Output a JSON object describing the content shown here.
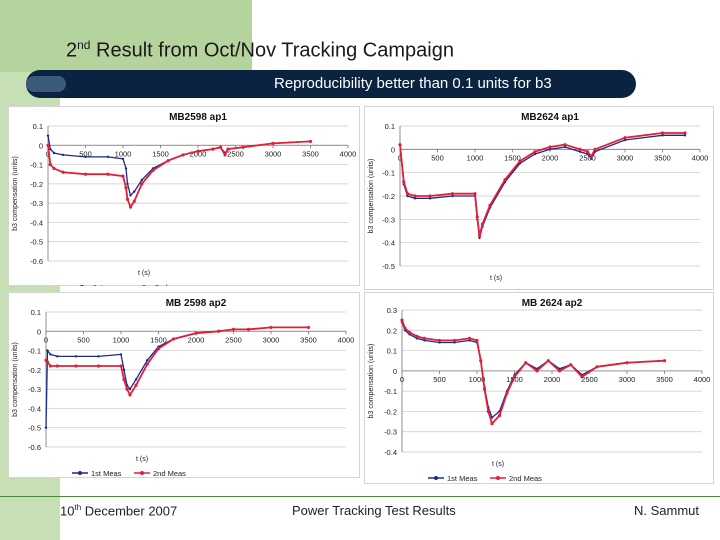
{
  "slide": {
    "title_pre": "2",
    "title_sup": "nd",
    "title_post": " Result from Oct/Nov Tracking Campaign",
    "subtitle": "Reproducibility better than 0.1 units for b3",
    "footer_left_pre": "10",
    "footer_left_sup": "th",
    "footer_left_post": " December 2007",
    "footer_center": "Power Tracking Test Results",
    "footer_right": "N. Sammut"
  },
  "colors": {
    "meas1": "#1c2a8c",
    "meas2": "#e0203a",
    "banner": "#0a2340",
    "green": "#b5d39d"
  },
  "chart_data": [
    {
      "id": "mb2598-ap1",
      "type": "line",
      "title": "MB2598 ap1",
      "xlabel": "t (s)",
      "ylabel": "b3 compensation (units)",
      "xlim": [
        0,
        4000
      ],
      "ylim": [
        -0.6,
        0.1
      ],
      "xticks": [
        0,
        500,
        1000,
        1500,
        2000,
        2500,
        3000,
        3500,
        4000
      ],
      "xtick_labels": [
        "0",
        "500",
        "1000",
        "1500",
        "2000",
        "2500",
        "3000",
        "3500",
        "4000"
      ],
      "yticks": [
        0.1,
        0,
        -0.1,
        -0.2,
        -0.3,
        -0.4,
        -0.5,
        -0.6
      ],
      "ytick_labels": [
        "0.1",
        "0",
        "-0.1",
        "-0.2",
        "-0.3",
        "-0.4",
        "-0.5",
        "-0.6"
      ],
      "legend": [
        "1st meas",
        "2nd meas"
      ],
      "series": [
        {
          "name": "1st meas",
          "x": [
            0,
            30,
            80,
            200,
            500,
            800,
            1000,
            1040,
            1060,
            1100,
            1150,
            1250,
            1400,
            1600,
            1800,
            2000,
            2200,
            2300,
            2360,
            2400,
            2600,
            3000,
            3500
          ],
          "y": [
            0.05,
            -0.02,
            -0.04,
            -0.05,
            -0.06,
            -0.06,
            -0.07,
            -0.12,
            -0.2,
            -0.26,
            -0.24,
            -0.18,
            -0.12,
            -0.08,
            -0.05,
            -0.03,
            -0.02,
            -0.01,
            -0.04,
            -0.02,
            -0.01,
            0.01,
            0.02
          ]
        },
        {
          "name": "2nd meas",
          "x": [
            0,
            30,
            80,
            200,
            500,
            800,
            1000,
            1040,
            1060,
            1100,
            1150,
            1250,
            1400,
            1600,
            1800,
            2000,
            2200,
            2300,
            2360,
            2400,
            2600,
            3000,
            3500
          ],
          "y": [
            0.0,
            -0.1,
            -0.12,
            -0.14,
            -0.15,
            -0.15,
            -0.16,
            -0.22,
            -0.28,
            -0.32,
            -0.29,
            -0.2,
            -0.13,
            -0.08,
            -0.05,
            -0.03,
            -0.02,
            -0.01,
            -0.05,
            -0.02,
            -0.01,
            0.01,
            0.02
          ]
        }
      ]
    },
    {
      "id": "mb2624-ap1",
      "type": "line",
      "title": "MB2624 ap1",
      "xlabel": "t (s)",
      "ylabel": "b3 compensation (units)",
      "xlim": [
        0,
        4000
      ],
      "ylim": [
        -0.5,
        0.1
      ],
      "xticks": [
        0,
        500,
        1000,
        1500,
        2000,
        2500,
        3000,
        3500,
        4000
      ],
      "xtick_labels": [
        "0",
        "500",
        "1000",
        "1500",
        "2000",
        "2500",
        "3000",
        "3500",
        "4000"
      ],
      "yticks": [
        0.1,
        0,
        -0.1,
        -0.2,
        -0.3,
        -0.4,
        -0.5
      ],
      "ytick_labels": [
        "0.1",
        "0",
        "-0.1",
        "-0.2",
        "-0.3",
        "-0.4",
        "-0.5"
      ],
      "legend": [
        "1st meas",
        "2nd meas"
      ],
      "series": [
        {
          "name": "1st meas",
          "x": [
            0,
            50,
            100,
            200,
            400,
            700,
            1000,
            1030,
            1060,
            1100,
            1200,
            1400,
            1600,
            1800,
            2000,
            2200,
            2400,
            2500,
            2550,
            2600,
            3000,
            3500,
            3800
          ],
          "y": [
            0.02,
            -0.15,
            -0.2,
            -0.21,
            -0.21,
            -0.2,
            -0.2,
            -0.3,
            -0.38,
            -0.33,
            -0.25,
            -0.14,
            -0.06,
            -0.02,
            0.0,
            0.01,
            -0.01,
            -0.02,
            -0.04,
            -0.01,
            0.04,
            0.06,
            0.06
          ]
        },
        {
          "name": "2nd meas",
          "x": [
            0,
            50,
            100,
            200,
            400,
            700,
            1000,
            1030,
            1060,
            1100,
            1200,
            1400,
            1600,
            1800,
            2000,
            2200,
            2400,
            2500,
            2550,
            2600,
            3000,
            3500,
            3800
          ],
          "y": [
            0.02,
            -0.14,
            -0.19,
            -0.2,
            -0.2,
            -0.19,
            -0.19,
            -0.29,
            -0.37,
            -0.32,
            -0.24,
            -0.13,
            -0.05,
            -0.01,
            0.01,
            0.02,
            0.0,
            -0.01,
            -0.03,
            0.0,
            0.05,
            0.07,
            0.07
          ]
        }
      ]
    },
    {
      "id": "mb2598-ap2",
      "type": "line",
      "title": "MB 2598 ap2",
      "xlabel": "t (s)",
      "ylabel": "b3 compensation (units)",
      "xlim": [
        0,
        4000
      ],
      "ylim": [
        -0.6,
        0.1
      ],
      "xticks": [
        0,
        500,
        1000,
        1500,
        2000,
        2500,
        3000,
        3500,
        4000
      ],
      "xtick_labels": [
        "0",
        "500",
        "1000",
        "1500",
        "2000",
        "2500",
        "3000",
        "3500",
        "4000"
      ],
      "yticks": [
        0.1,
        0,
        -0.1,
        -0.2,
        -0.3,
        -0.4,
        -0.5,
        -0.6
      ],
      "ytick_labels": [
        "0.1",
        "0",
        "-0.1",
        "-0.2",
        "-0.3",
        "-0.4",
        "-0.5",
        "-0.6"
      ],
      "legend": [
        "1st Meas",
        "2nd Meas"
      ],
      "series": [
        {
          "name": "1st Meas",
          "x": [
            0,
            20,
            60,
            150,
            400,
            700,
            1000,
            1040,
            1080,
            1120,
            1200,
            1350,
            1500,
            1700,
            2000,
            2300,
            2500,
            2700,
            3000,
            3500
          ],
          "y": [
            -0.5,
            -0.1,
            -0.12,
            -0.13,
            -0.13,
            -0.13,
            -0.12,
            -0.2,
            -0.28,
            -0.3,
            -0.25,
            -0.15,
            -0.08,
            -0.04,
            -0.01,
            0.0,
            0.01,
            0.01,
            0.02,
            0.02
          ]
        },
        {
          "name": "2nd Meas",
          "x": [
            0,
            20,
            60,
            150,
            400,
            700,
            1000,
            1040,
            1080,
            1120,
            1200,
            1350,
            1500,
            1700,
            2000,
            2300,
            2500,
            2700,
            3000,
            3500
          ],
          "y": [
            -0.15,
            -0.16,
            -0.18,
            -0.18,
            -0.18,
            -0.18,
            -0.18,
            -0.25,
            -0.3,
            -0.33,
            -0.28,
            -0.17,
            -0.09,
            -0.04,
            -0.01,
            0.0,
            0.01,
            0.01,
            0.02,
            0.02
          ]
        }
      ]
    },
    {
      "id": "mb2624-ap2",
      "type": "line",
      "title": "MB 2624 ap2",
      "xlabel": "t (s)",
      "ylabel": "b3 compensation (units)",
      "xlim": [
        0,
        4000
      ],
      "ylim": [
        -0.4,
        0.3
      ],
      "xticks": [
        0,
        500,
        1000,
        1500,
        2000,
        2500,
        3000,
        3500,
        4000
      ],
      "xtick_labels": [
        "0",
        "500",
        "1000",
        "1500",
        "2000",
        "2500",
        "3000",
        "3500",
        "4000"
      ],
      "yticks": [
        0.3,
        0.2,
        0.1,
        0,
        -0.1,
        -0.2,
        -0.3,
        -0.4
      ],
      "ytick_labels": [
        "0.3",
        "0.2",
        "0.1",
        "0",
        "-0.1",
        "-0.2",
        "-0.3",
        "-0.4"
      ],
      "legend": [
        "1st Meas",
        "2nd Meas"
      ],
      "series": [
        {
          "name": "1st Meas",
          "x": [
            0,
            40,
            100,
            200,
            300,
            500,
            700,
            900,
            1000,
            1050,
            1100,
            1150,
            1200,
            1300,
            1400,
            1500,
            1650,
            1800,
            1950,
            2100,
            2250,
            2400,
            2600,
            3000,
            3500
          ],
          "y": [
            0.24,
            0.2,
            0.18,
            0.16,
            0.15,
            0.14,
            0.14,
            0.15,
            0.14,
            0.05,
            -0.08,
            -0.18,
            -0.23,
            -0.2,
            -0.1,
            -0.02,
            0.04,
            0.01,
            0.05,
            0.01,
            0.03,
            -0.02,
            0.02,
            0.04,
            0.05
          ]
        },
        {
          "name": "2nd Meas",
          "x": [
            0,
            40,
            100,
            200,
            300,
            500,
            700,
            900,
            1000,
            1050,
            1100,
            1150,
            1200,
            1300,
            1400,
            1500,
            1650,
            1800,
            1950,
            2100,
            2250,
            2400,
            2600,
            3000,
            3500
          ],
          "y": [
            0.25,
            0.21,
            0.19,
            0.17,
            0.16,
            0.15,
            0.15,
            0.16,
            0.15,
            0.05,
            -0.09,
            -0.2,
            -0.26,
            -0.22,
            -0.11,
            -0.03,
            0.04,
            0.0,
            0.05,
            0.0,
            0.03,
            -0.03,
            0.02,
            0.04,
            0.05
          ]
        }
      ]
    }
  ]
}
